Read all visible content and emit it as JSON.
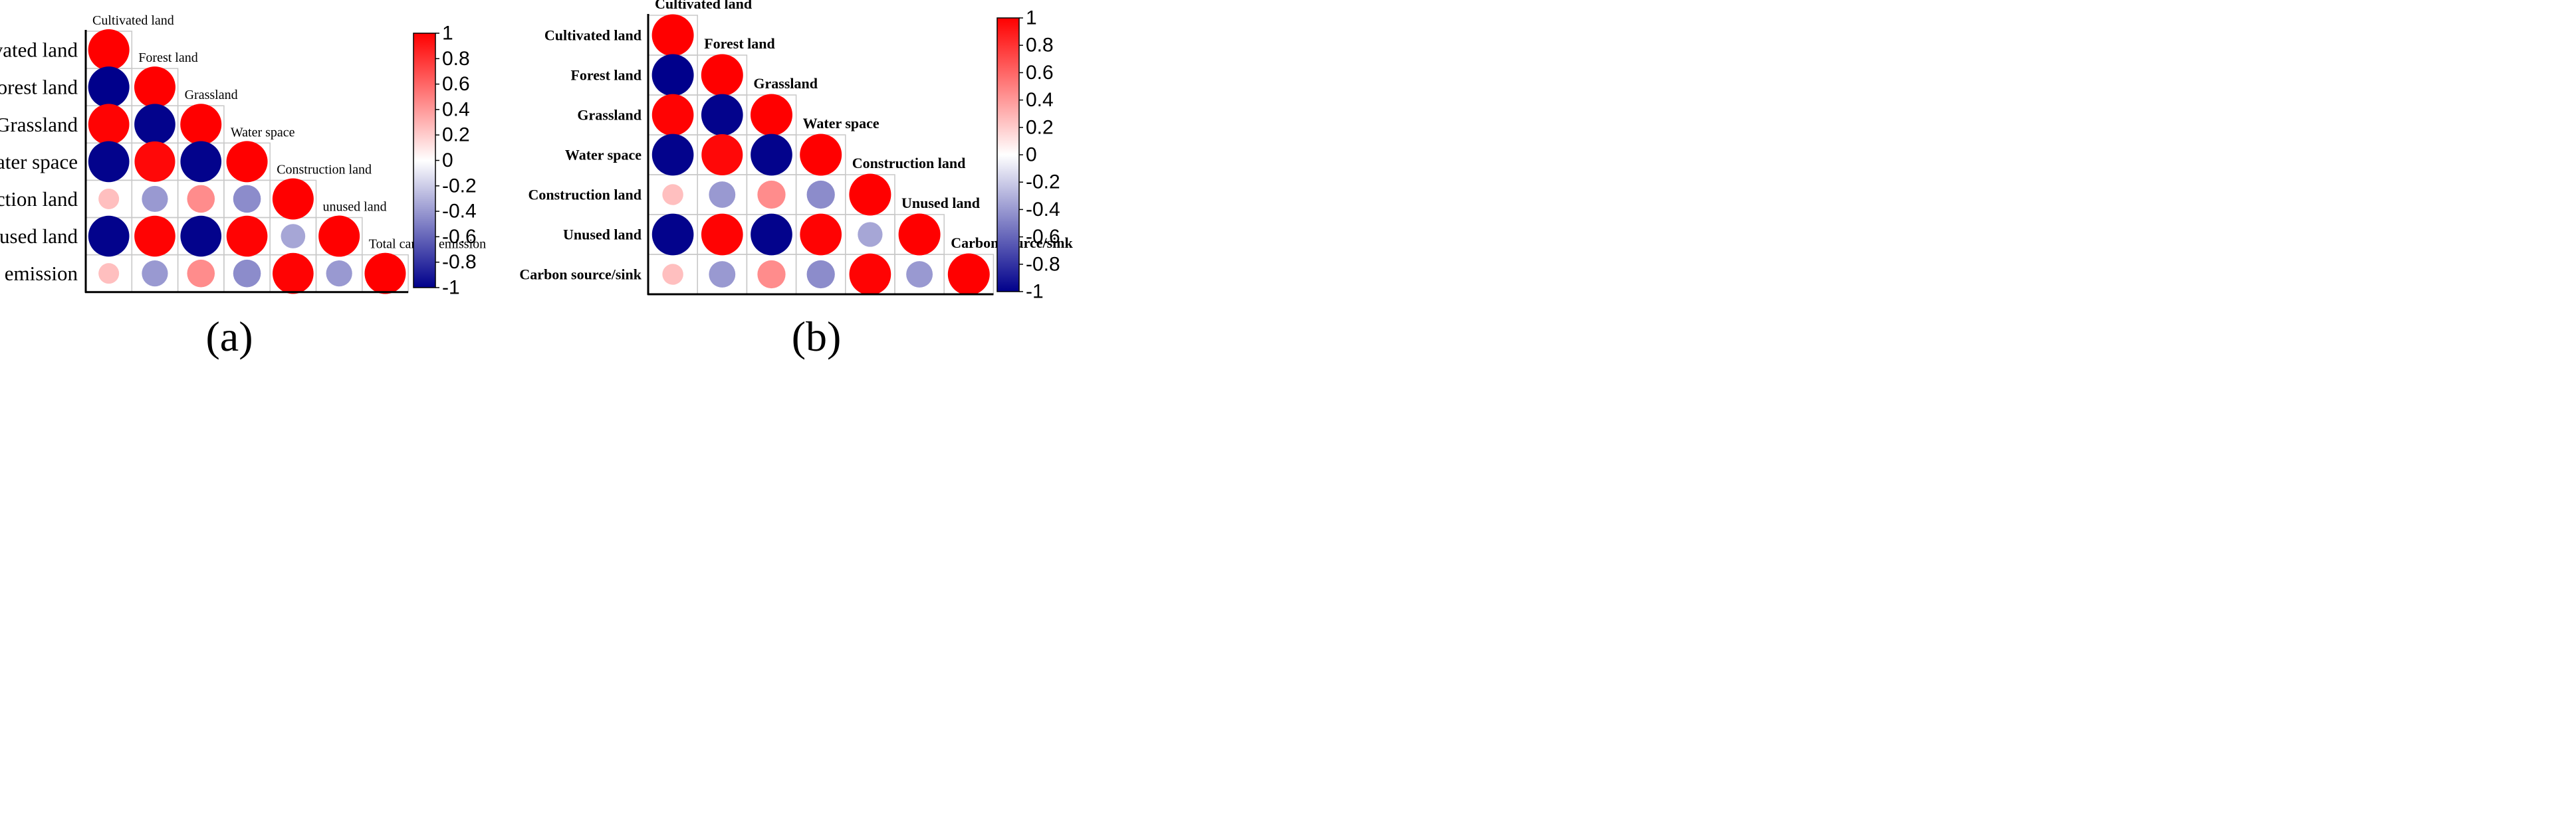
{
  "colors": {
    "positive": "#ff0000",
    "negative": "#00008b",
    "neutral": "#ffffff",
    "grid": "#c8c8c8",
    "axis": "#000000"
  },
  "colorbar_ticks": [
    "1",
    "0.8",
    "0.6",
    "0.4",
    "0.2",
    "0",
    "-0.2",
    "-0.4",
    "-0.6",
    "-0.8",
    "-1"
  ],
  "chart_data": [
    {
      "type": "heatmap",
      "style": "circle-correlogram-lower-triangle",
      "panel_label": "(a)",
      "variables": [
        "Cultivated land",
        "Forest land",
        "Grassland",
        "Water space",
        "Construction land",
        "unused land",
        "Total carbon emission"
      ],
      "diagonal_labels": [
        "Cultivated land",
        "Forest land",
        "Grassland",
        "Water space",
        "Construction land",
        "unused land",
        "Total carbon emission"
      ],
      "colorbar_range": [
        -1,
        1
      ],
      "matrix": [
        [
          1
        ],
        [
          -1,
          1
        ],
        [
          0.99,
          -0.99,
          1
        ],
        [
          -0.99,
          0.97,
          -0.99,
          1
        ],
        [
          0.25,
          -0.4,
          0.45,
          -0.45,
          1
        ],
        [
          -0.99,
          0.99,
          -0.99,
          0.99,
          -0.35,
          1
        ],
        [
          0.25,
          -0.4,
          0.45,
          -0.45,
          0.99,
          -0.4,
          1
        ]
      ]
    },
    {
      "type": "heatmap",
      "style": "circle-correlogram-lower-triangle",
      "panel_label": "(b)",
      "variables": [
        "Cultivated land",
        "Forest land",
        "Grassland",
        "Water space",
        "Construction land",
        "Unused land",
        "Carbon source/sink"
      ],
      "diagonal_labels": [
        "Cultivated land",
        "Forest land",
        "Grassland",
        "Water space",
        "Construction land",
        "Unused land",
        "Carbon source/sink"
      ],
      "colorbar_range": [
        -1,
        1
      ],
      "matrix": [
        [
          1
        ],
        [
          -1,
          1
        ],
        [
          0.99,
          -0.99,
          1
        ],
        [
          -0.99,
          0.97,
          -0.99,
          1
        ],
        [
          0.25,
          -0.4,
          0.45,
          -0.45,
          1
        ],
        [
          -0.99,
          0.99,
          -0.99,
          0.99,
          -0.35,
          1
        ],
        [
          0.25,
          -0.4,
          0.45,
          -0.45,
          0.99,
          -0.4,
          1
        ]
      ]
    }
  ]
}
